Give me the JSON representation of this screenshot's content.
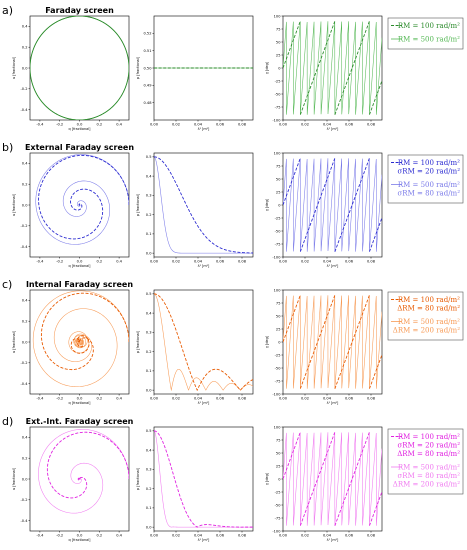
{
  "chart_data": [
    {
      "type": "line",
      "panel_label": "a)",
      "title": "Faraday screen",
      "qu": {
        "xlabel": "q [fractional]",
        "ylabel": "u [fractional]",
        "xlim": [
          -0.5,
          0.5
        ],
        "ylim": [
          -0.5,
          0.5
        ],
        "xticks": [
          "-0.4",
          "-0.2",
          "0.0",
          "0.2",
          "0.4"
        ],
        "yticks": [
          "-0.4",
          "-0.2",
          "0.0",
          "0.2",
          "0.4"
        ]
      },
      "p": {
        "xlabel": "λ² [m²]",
        "ylabel": "p [fractional]",
        "xlim": [
          0,
          0.09
        ],
        "ylim": [
          0.47,
          0.53
        ],
        "xticks": [
          "0.00",
          "0.02",
          "0.04",
          "0.06",
          "0.08"
        ],
        "yticks": [
          "0.48",
          "0.49",
          "0.50",
          "0.51",
          "0.52"
        ]
      },
      "chi": {
        "xlabel": "λ² [m²]",
        "ylabel": "χ [deg]",
        "xlim": [
          0,
          0.09
        ],
        "ylim": [
          -100,
          100
        ],
        "xticks": [
          "0.00",
          "0.02",
          "0.04",
          "0.06",
          "0.08"
        ],
        "yticks": [
          "-100",
          "-75",
          "-50",
          "-25",
          "0",
          "25",
          "50",
          "75",
          "100"
        ]
      },
      "model": {
        "kind": "faraday",
        "p0": 0.5
      },
      "series": [
        {
          "legend": [
            "RM = 100 rad/m²"
          ],
          "style": "dashed",
          "color": "#2a8a2a",
          "RM": 100
        },
        {
          "legend": [
            "RM = 500 rad/m²"
          ],
          "style": "solid",
          "color": "#55b855",
          "RM": 500
        }
      ]
    },
    {
      "type": "line",
      "panel_label": "b)",
      "title": "External Faraday screen",
      "qu": {
        "xlabel": "q [fractional]",
        "ylabel": "u [fractional]",
        "xlim": [
          -0.5,
          0.5
        ],
        "ylim": [
          -0.5,
          0.5
        ],
        "xticks": [
          "-0.4",
          "-0.2",
          "0.0",
          "0.2",
          "0.4"
        ],
        "yticks": [
          "-0.4",
          "-0.2",
          "0.0",
          "0.2",
          "0.4"
        ]
      },
      "p": {
        "xlabel": "λ² [m²]",
        "ylabel": "p [fractional]",
        "xlim": [
          0,
          0.09
        ],
        "ylim": [
          -0.02,
          0.52
        ],
        "xticks": [
          "0.00",
          "0.02",
          "0.04",
          "0.06",
          "0.08"
        ],
        "yticks": [
          "0.0",
          "0.1",
          "0.2",
          "0.3",
          "0.4",
          "0.5"
        ]
      },
      "chi": {
        "xlabel": "λ² [m²]",
        "ylabel": "χ [deg]",
        "xlim": [
          0,
          0.09
        ],
        "ylim": [
          -100,
          100
        ],
        "xticks": [
          "0.00",
          "0.02",
          "0.04",
          "0.06",
          "0.08"
        ],
        "yticks": [
          "-100",
          "-75",
          "-50",
          "-25",
          "0",
          "25",
          "50",
          "75",
          "100"
        ]
      },
      "model": {
        "kind": "external",
        "p0": 0.5
      },
      "series": [
        {
          "legend": [
            "RM = 100 rad/m²",
            "σRM = 20 rad/m²"
          ],
          "style": "dashed",
          "color": "#2a2ad0",
          "RM": 100,
          "sigma": 20
        },
        {
          "legend": [
            "RM = 500 rad/m²",
            "σRM = 80 rad/m²"
          ],
          "style": "solid",
          "color": "#7a7ae8",
          "RM": 500,
          "sigma": 80
        }
      ]
    },
    {
      "type": "line",
      "panel_label": "c)",
      "title": "Internal Faraday screen",
      "qu": {
        "xlabel": "q [fractional]",
        "ylabel": "u [fractional]",
        "xlim": [
          -0.5,
          0.5
        ],
        "ylim": [
          -0.5,
          0.5
        ],
        "xticks": [
          "-0.4",
          "-0.2",
          "0.0",
          "0.2",
          "0.4"
        ],
        "yticks": [
          "-0.4",
          "-0.2",
          "0.0",
          "0.2",
          "0.4"
        ]
      },
      "p": {
        "xlabel": "λ² [m²]",
        "ylabel": "p [fractional]",
        "xlim": [
          0,
          0.09
        ],
        "ylim": [
          -0.02,
          0.52
        ],
        "xticks": [
          "0.00",
          "0.02",
          "0.04",
          "0.06",
          "0.08"
        ],
        "yticks": [
          "0.0",
          "0.1",
          "0.2",
          "0.3",
          "0.4",
          "0.5"
        ]
      },
      "chi": {
        "xlabel": "λ² [m²]",
        "ylabel": "χ [deg]",
        "xlim": [
          0,
          0.09
        ],
        "ylim": [
          -100,
          100
        ],
        "xticks": [
          "0.00",
          "0.02",
          "0.04",
          "0.06",
          "0.08"
        ],
        "yticks": [
          "-100",
          "-75",
          "-50",
          "-25",
          "0",
          "25",
          "50",
          "75",
          "100"
        ]
      },
      "model": {
        "kind": "internal",
        "p0": 0.5
      },
      "series": [
        {
          "legend": [
            "RM = 100 rad/m²",
            "ΔRM = 80 rad/m²"
          ],
          "style": "dashed",
          "color": "#e85a00",
          "RM": 100,
          "delta": 80
        },
        {
          "legend": [
            "RM = 500 rad/m²",
            "ΔRM = 200 rad/m²"
          ],
          "style": "solid",
          "color": "#f79a55",
          "RM": 500,
          "delta": 200
        }
      ]
    },
    {
      "type": "line",
      "panel_label": "d)",
      "title": "Ext.-Int. Faraday screen",
      "qu": {
        "xlabel": "q [fractional]",
        "ylabel": "u [fractional]",
        "xlim": [
          -0.5,
          0.5
        ],
        "ylim": [
          -0.5,
          0.5
        ],
        "xticks": [
          "-0.4",
          "-0.2",
          "0.0",
          "0.2",
          "0.4"
        ],
        "yticks": [
          "-0.4",
          "-0.2",
          "0.0",
          "0.2",
          "0.4"
        ]
      },
      "p": {
        "xlabel": "λ² [m²]",
        "ylabel": "p [fractional]",
        "xlim": [
          0,
          0.09
        ],
        "ylim": [
          -0.02,
          0.52
        ],
        "xticks": [
          "0.00",
          "0.02",
          "0.04",
          "0.06",
          "0.08"
        ],
        "yticks": [
          "0.0",
          "0.1",
          "0.2",
          "0.3",
          "0.4",
          "0.5"
        ]
      },
      "chi": {
        "xlabel": "λ² [m²]",
        "ylabel": "χ [deg]",
        "xlim": [
          0,
          0.09
        ],
        "ylim": [
          -100,
          100
        ],
        "xticks": [
          "0.00",
          "0.02",
          "0.04",
          "0.06",
          "0.08"
        ],
        "yticks": [
          "-100",
          "-75",
          "-50",
          "-25",
          "0",
          "25",
          "50",
          "75",
          "100"
        ]
      },
      "model": {
        "kind": "extint",
        "p0": 0.5
      },
      "series": [
        {
          "legend": [
            "RM = 100 rad/m²",
            "σRM = 20 rad/m²",
            "ΔRM = 80 rad/m²"
          ],
          "style": "dashed",
          "color": "#e020e0",
          "RM": 100,
          "sigma": 20,
          "delta": 80
        },
        {
          "legend": [
            "RM = 500 rad/m²",
            "σRM = 80 rad/m²",
            "ΔRM = 200 rad/m²"
          ],
          "style": "solid",
          "color": "#f07af0",
          "RM": 500,
          "sigma": 80,
          "delta": 200
        }
      ]
    }
  ]
}
